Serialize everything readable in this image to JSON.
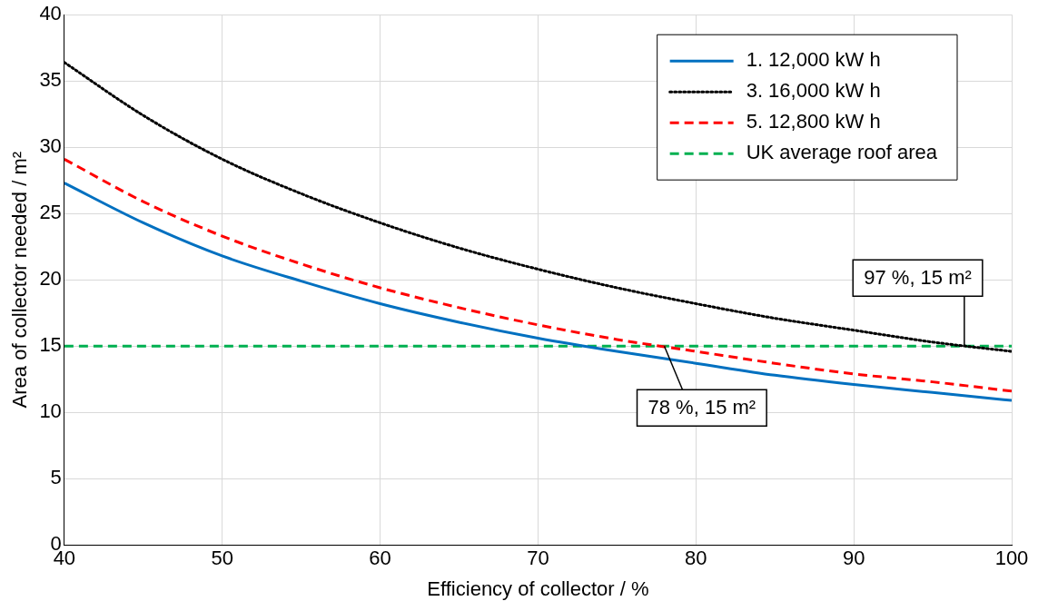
{
  "chart_data": {
    "type": "line",
    "xlabel": "Efficiency of collector / %",
    "ylabel": "Area of collector needed / m²",
    "x": [
      40,
      45,
      50,
      55,
      60,
      65,
      70,
      75,
      80,
      85,
      90,
      95,
      100
    ],
    "series": [
      {
        "name": "1. 12,000 kW h",
        "color": "#0070c0",
        "line_style": "solid",
        "values": [
          27.3,
          24.3,
          21.8,
          19.9,
          18.2,
          16.8,
          15.6,
          14.6,
          13.7,
          12.8,
          12.1,
          11.5,
          10.9
        ]
      },
      {
        "name": "3. 16,000 kW h",
        "color": "#000000",
        "line_style": "dotted",
        "values": [
          36.4,
          32.4,
          29.1,
          26.5,
          24.3,
          22.4,
          20.8,
          19.4,
          18.2,
          17.1,
          16.2,
          15.3,
          14.6
        ]
      },
      {
        "name": "5. 12,800 kW h",
        "color": "#ff0000",
        "line_style": "dashed",
        "values": [
          29.1,
          25.9,
          23.3,
          21.2,
          19.4,
          17.9,
          16.6,
          15.5,
          14.6,
          13.7,
          12.9,
          12.3,
          11.6
        ]
      },
      {
        "name": "UK average roof area",
        "color": "#00b050",
        "line_style": "dashed",
        "values": [
          15,
          15,
          15,
          15,
          15,
          15,
          15,
          15,
          15,
          15,
          15,
          15,
          15
        ]
      }
    ],
    "xlim": [
      40,
      100
    ],
    "xticks": [
      40,
      50,
      60,
      70,
      80,
      90,
      100
    ],
    "ylim": [
      0,
      40
    ],
    "yticks": [
      0,
      5,
      10,
      15,
      20,
      25,
      30,
      35,
      40
    ],
    "grid": true,
    "legend": "top right",
    "marker": "none",
    "annotations": [
      {
        "text": "78 %, 15 m²",
        "x": 78,
        "y": 15
      },
      {
        "text": "97 %, 15 m²",
        "x": 97,
        "y": 15
      }
    ]
  }
}
